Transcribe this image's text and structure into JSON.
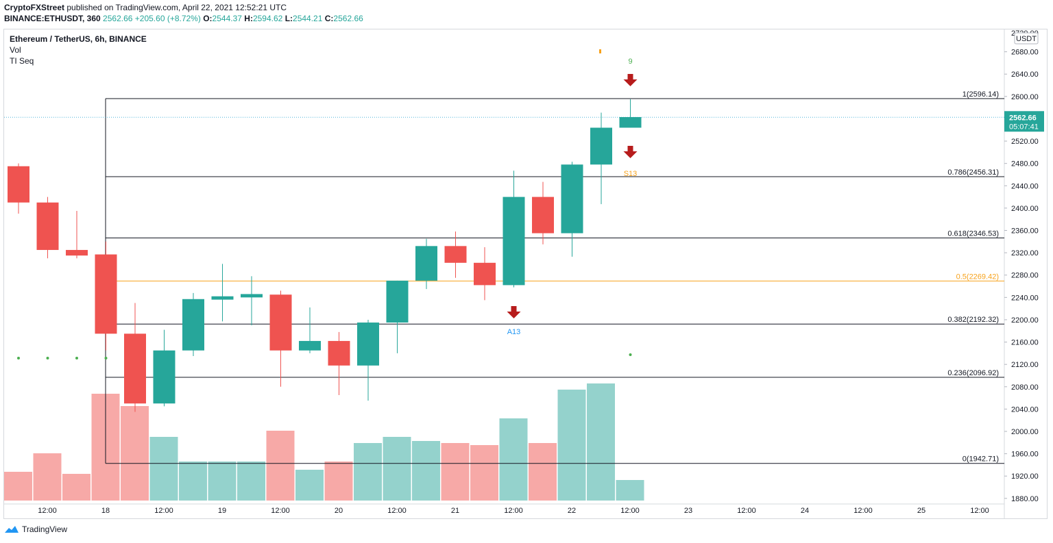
{
  "header": {
    "publisher": "CryptoFXStreet",
    "publish_text": "published on TradingView.com, April 22, 2021 12:52:21 UTC",
    "symbol_line": "BINANCE:ETHUSDT, 360",
    "last": "2562.66",
    "change": "+205.60 (+8.72%)",
    "o": "2544.37",
    "h": "2594.62",
    "l": "2544.21",
    "c": "2562.66",
    "o_label": "O:",
    "h_label": "H:",
    "l_label": "L:",
    "c_label": "C:"
  },
  "legend": {
    "title": "Ethereum / TetherUS, 6h, BINANCE",
    "vol": "Vol",
    "tiseq": "TI Seq"
  },
  "footer": {
    "brand": "TradingView",
    "logo_icon": "tradingview-logo-icon"
  },
  "colors": {
    "up": "#26a69a",
    "down": "#ef5350",
    "vol_up": "#94d2cc",
    "vol_down": "#f7a9a7",
    "fib_line": "#131722",
    "fib_mid": "#f7a21b",
    "last_price_line": "#4fb3d9",
    "arrow": "#b71c1c",
    "seq_green": "#4caf50",
    "a13": "#2196f3",
    "s13": "#f7a21b"
  },
  "chart_data": {
    "type": "candlestick",
    "title": "Ethereum / TetherUS, 6h, BINANCE",
    "currency": "USDT",
    "ylim": [
      1870,
      2720
    ],
    "y_ticks": [
      "2680.00",
      "2640.00",
      "2600.00",
      "2560.00",
      "2520.00",
      "2480.00",
      "2440.00",
      "2400.00",
      "2360.00",
      "2320.00",
      "2280.00",
      "2240.00",
      "2200.00",
      "2160.00",
      "2120.00",
      "2080.00",
      "2040.00",
      "2000.00",
      "1960.00",
      "1920.00",
      "1880.00"
    ],
    "y_top_partial": "2720.00",
    "x_labels": [
      "12:00",
      "18",
      "12:00",
      "19",
      "12:00",
      "20",
      "12:00",
      "21",
      "12:00",
      "22",
      "12:00",
      "23",
      "12:00",
      "24",
      "12:00",
      "25",
      "12:00"
    ],
    "candles": [
      {
        "o": 2475,
        "h": 2480,
        "l": 2390,
        "c": 2410
      },
      {
        "o": 2410,
        "h": 2420,
        "l": 2310,
        "c": 2325
      },
      {
        "o": 2325,
        "h": 2395,
        "l": 2310,
        "c": 2315
      },
      {
        "o": 2317,
        "h": 2340,
        "l": 2145,
        "c": 2175
      },
      {
        "o": 2175,
        "h": 2230,
        "l": 2035,
        "c": 2050
      },
      {
        "o": 2050,
        "h": 2182,
        "l": 2045,
        "c": 2145
      },
      {
        "o": 2145,
        "h": 2248,
        "l": 2135,
        "c": 2237
      },
      {
        "o": 2236,
        "h": 2300,
        "l": 2197,
        "c": 2242
      },
      {
        "o": 2240,
        "h": 2278,
        "l": 2190,
        "c": 2246
      },
      {
        "o": 2245,
        "h": 2252,
        "l": 2080,
        "c": 2145
      },
      {
        "o": 2145,
        "h": 2222,
        "l": 2140,
        "c": 2162
      },
      {
        "o": 2162,
        "h": 2178,
        "l": 2065,
        "c": 2118
      },
      {
        "o": 2118,
        "h": 2200,
        "l": 2055,
        "c": 2195
      },
      {
        "o": 2195,
        "h": 2270,
        "l": 2140,
        "c": 2270
      },
      {
        "o": 2270,
        "h": 2345,
        "l": 2255,
        "c": 2332
      },
      {
        "o": 2332,
        "h": 2358,
        "l": 2275,
        "c": 2302
      },
      {
        "o": 2302,
        "h": 2330,
        "l": 2235,
        "c": 2262
      },
      {
        "o": 2262,
        "h": 2467,
        "l": 2258,
        "c": 2420
      },
      {
        "o": 2420,
        "h": 2447,
        "l": 2335,
        "c": 2355
      },
      {
        "o": 2355,
        "h": 2483,
        "l": 2313,
        "c": 2478
      },
      {
        "o": 2478,
        "h": 2571,
        "l": 2407,
        "c": 2544
      },
      {
        "o": 2544,
        "h": 2595,
        "l": 2544,
        "c": 2563
      }
    ],
    "volume": [
      14,
      23,
      13,
      52,
      46,
      31,
      19,
      19,
      19,
      34,
      15,
      19,
      28,
      31,
      29,
      28,
      27,
      40,
      28,
      54,
      57,
      10
    ],
    "volume_dir": [
      "down",
      "down",
      "down",
      "down",
      "down",
      "up",
      "up",
      "up",
      "up",
      "down",
      "up",
      "down",
      "up",
      "up",
      "up",
      "down",
      "down",
      "up",
      "down",
      "up",
      "up",
      "up"
    ],
    "last_price": "2562.66",
    "countdown": "05:07:41",
    "fibonacci": [
      {
        "label": "1(2596.14)",
        "value": 2596.14
      },
      {
        "label": "0.786(2456.31)",
        "value": 2456.31
      },
      {
        "label": "0.618(2346.53)",
        "value": 2346.53
      },
      {
        "label": "0.5(2269.42)",
        "value": 2269.42
      },
      {
        "label": "0.382(2192.32)",
        "value": 2192.32
      },
      {
        "label": "0.236(2096.92)",
        "value": 2096.92
      },
      {
        "label": "0(1942.71)",
        "value": 1942.71
      }
    ],
    "annotations": {
      "seq_9": "9",
      "a13": "A13",
      "s13": "S13"
    }
  }
}
